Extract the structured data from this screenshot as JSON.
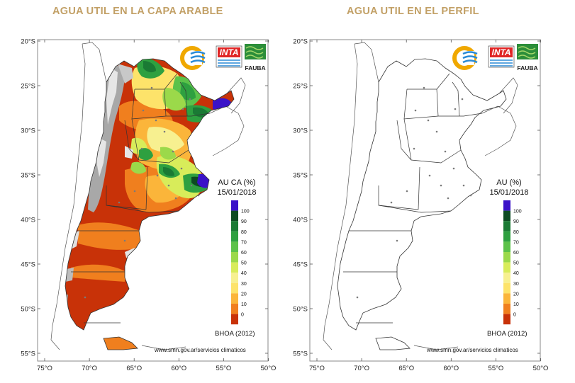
{
  "panels": [
    {
      "title": "AGUA UTIL EN LA CAPA ARABLE",
      "variable_label": "AU CA (%)",
      "date": "15/01/2018",
      "footer_left": "BHOA (2012)",
      "footer_url": "www.smn.gov.ar/servicios climaticos"
    },
    {
      "title": "AGUA UTIL EN EL PERFIL",
      "variable_label": "AU (%)",
      "date": "15/01/2018",
      "footer_left": "BHOA (2012)",
      "footer_url": "www.smn.gov.ar/servicios climaticos"
    }
  ],
  "logos": {
    "inta": "INTA",
    "fauba": "FAUBA"
  },
  "lat_labels": [
    "20°S",
    "25°S",
    "30°S",
    "35°S",
    "40°S",
    "45°S",
    "50°S",
    "55°S"
  ],
  "lon_labels": [
    "75°O",
    "70°O",
    "65°O",
    "60°O",
    "55°O",
    "50°O"
  ],
  "legend": {
    "ticks": [
      "100",
      "90",
      "80",
      "70",
      "60",
      "50",
      "40",
      "30",
      "20",
      "10",
      "0"
    ],
    "colors": [
      "#3a12c8",
      "#0d4a22",
      "#1a7a34",
      "#2ea040",
      "#5cc24a",
      "#9bd94a",
      "#d8ec5a",
      "#f7f090",
      "#fde36a",
      "#fbb53a",
      "#f07f1e",
      "#c83208"
    ]
  },
  "colors": {
    "title": "#c2a066",
    "dry": "#c83208",
    "mountains": "#a8a8a8"
  }
}
